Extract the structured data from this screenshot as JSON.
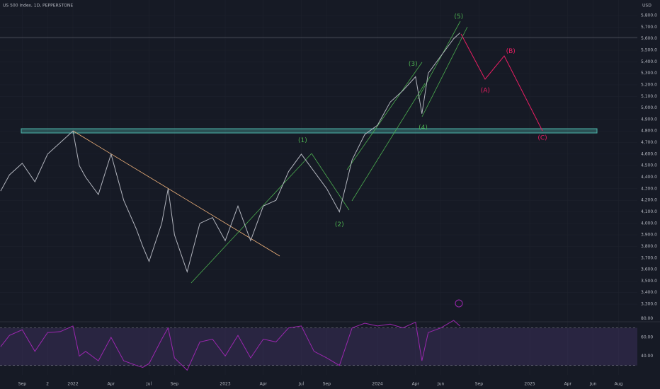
{
  "chart_data": [
    {
      "type": "line",
      "title": "US 500 Index, 1D, PEPPERSTONE",
      "currency": "USD",
      "x": [
        6.3,
        7,
        8,
        9,
        10,
        11,
        12,
        12.5,
        13,
        14,
        15,
        16,
        17,
        17.5,
        18,
        19,
        19.5,
        20,
        21,
        22,
        23,
        24,
        25,
        26,
        27,
        28,
        29,
        30,
        31,
        32,
        33,
        34,
        35,
        36,
        37,
        38,
        39,
        39.5,
        40,
        41,
        42,
        42.5
      ],
      "series": [
        {
          "color": "#b2b5be",
          "values": [
            4280,
            4420,
            4520,
            4360,
            4600,
            4700,
            4800,
            4500,
            4400,
            4250,
            4600,
            4200,
            3950,
            3800,
            3670,
            4000,
            4300,
            3900,
            3580,
            4000,
            4050,
            3850,
            4150,
            3850,
            4150,
            4200,
            4450,
            4600,
            4450,
            4300,
            4100,
            4550,
            4770,
            4850,
            5050,
            5150,
            5270,
            4950,
            5300,
            5450,
            5600,
            5650
          ]
        }
      ],
      "xlim": [
        6.25,
        56.48
      ],
      "xticks": [
        {
          "value": 8,
          "label": "Sep"
        },
        {
          "value": 10,
          "label": "2"
        },
        {
          "value": 12,
          "label": "2022"
        },
        {
          "value": 15,
          "label": "Apr"
        },
        {
          "value": 18,
          "label": "Jul"
        },
        {
          "value": 20,
          "label": "Sep"
        },
        {
          "value": 24,
          "label": "2023"
        },
        {
          "value": 27,
          "label": "Apr"
        },
        {
          "value": 30,
          "label": "Jul"
        },
        {
          "value": 32,
          "label": "Sep"
        },
        {
          "value": 36,
          "label": "2024"
        },
        {
          "value": 39,
          "label": "Apr"
        },
        {
          "value": 41,
          "label": "Jun"
        },
        {
          "value": 44,
          "label": "Sep"
        },
        {
          "value": 48,
          "label": "2025"
        },
        {
          "value": 51,
          "label": "Apr"
        },
        {
          "value": 53,
          "label": "Jun"
        },
        {
          "value": 55,
          "label": "Aug"
        }
      ],
      "ylim": [
        3147,
        5935
      ],
      "yticks": [
        {
          "value": 3300,
          "label": "3,300.0"
        },
        {
          "value": 3400,
          "label": "3,400.0"
        },
        {
          "value": 3500,
          "label": "3,500.0"
        },
        {
          "value": 3600,
          "label": "3,600.0"
        },
        {
          "value": 3700,
          "label": "3,700.0"
        },
        {
          "value": 3800,
          "label": "3,800.0"
        },
        {
          "value": 3900,
          "label": "3,900.0"
        },
        {
          "value": 4000,
          "label": "4,000.0"
        },
        {
          "value": 4100,
          "label": "4,100.0"
        },
        {
          "value": 4200,
          "label": "4,200.0"
        },
        {
          "value": 4300,
          "label": "4,300.0"
        },
        {
          "value": 4400,
          "label": "4,400.0"
        },
        {
          "value": 4500,
          "label": "4,500.0"
        },
        {
          "value": 4600,
          "label": "4,600.0"
        },
        {
          "value": 4700,
          "label": "4,700.0"
        },
        {
          "value": 4800,
          "label": "4,800.0"
        },
        {
          "value": 4900,
          "label": "4,900.0"
        },
        {
          "value": 5000,
          "label": "5,000.0"
        },
        {
          "value": 5100,
          "label": "5,100.0"
        },
        {
          "value": 5200,
          "label": "5,200.0"
        },
        {
          "value": 5300,
          "label": "5,300.0"
        },
        {
          "value": 5400,
          "label": "5,400.0"
        },
        {
          "value": 5500,
          "label": "5,500.0"
        },
        {
          "value": 5600,
          "label": "5,600.0"
        },
        {
          "value": 5700,
          "label": "5,700.0"
        },
        {
          "value": 5800,
          "label": "5,800.0"
        }
      ],
      "annotations": [
        {
          "label": "(1)",
          "x": 30.1,
          "y": 4720,
          "color": "#4caf50"
        },
        {
          "label": "(2)",
          "x": 33,
          "y": 3990,
          "color": "#4caf50"
        },
        {
          "label": "(3)",
          "x": 38.8,
          "y": 5380,
          "color": "#4caf50"
        },
        {
          "label": "(4)",
          "x": 39.6,
          "y": 4830,
          "color": "#4caf50"
        },
        {
          "label": "(5)",
          "x": 42.4,
          "y": 5790,
          "color": "#4caf50"
        },
        {
          "label": "(A)",
          "x": 44.5,
          "y": 5150,
          "color": "#e91e63"
        },
        {
          "label": "(B)",
          "x": 46.5,
          "y": 5490,
          "color": "#e91e63"
        },
        {
          "label": "(C)",
          "x": 49,
          "y": 4740,
          "color": "#e91e63"
        }
      ]
    },
    {
      "type": "line",
      "x": [
        6.3,
        7,
        8,
        9,
        10,
        11,
        12,
        12.5,
        13,
        14,
        15,
        16,
        17,
        17.5,
        18,
        19,
        19.5,
        20,
        21,
        22,
        23,
        24,
        25,
        26,
        27,
        28,
        29,
        30,
        31,
        32,
        33,
        34,
        35,
        36,
        37,
        38,
        39,
        39.5,
        40,
        41,
        42,
        42.5
      ],
      "series": [
        {
          "color": "#9c27b0",
          "values": [
            50,
            62,
            68,
            45,
            65,
            66,
            72,
            40,
            45,
            35,
            60,
            35,
            30,
            28,
            32,
            58,
            70,
            38,
            25,
            55,
            58,
            40,
            62,
            38,
            58,
            55,
            70,
            72,
            45,
            38,
            30,
            70,
            75,
            72,
            74,
            70,
            76,
            35,
            65,
            70,
            78,
            72
          ]
        }
      ],
      "xlim": [
        6.25,
        56.48
      ],
      "ylim": [
        20,
        84
      ],
      "yticks": [
        {
          "value": 40,
          "label": "40.00"
        },
        {
          "value": 60,
          "label": "60.00"
        },
        {
          "value": 80,
          "label": "80.00"
        }
      ],
      "bands": [
        30,
        70
      ]
    }
  ]
}
